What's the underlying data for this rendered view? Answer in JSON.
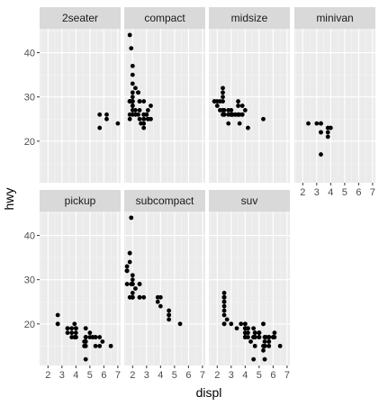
{
  "chart_data": {
    "type": "scatter",
    "xlabel": "displ",
    "ylabel": "hwy",
    "xlim": [
      1.4,
      7.2
    ],
    "ylim": [
      10.6,
      45.4
    ],
    "x_ticks": [
      2,
      3,
      4,
      5,
      6,
      7
    ],
    "y_ticks": [
      20,
      30,
      40
    ],
    "facet_by": "class",
    "colors": {
      "panel_background": "#ebebeb",
      "grid_major": "#ffffff",
      "strip_background": "#d9d9d9",
      "point": "#000000"
    },
    "panels": [
      {
        "name": "2seater",
        "points": [
          [
            5.7,
            26
          ],
          [
            5.7,
            23
          ],
          [
            6.2,
            26
          ],
          [
            6.2,
            25
          ],
          [
            7.0,
            24
          ]
        ]
      },
      {
        "name": "compact",
        "points": [
          [
            1.8,
            29
          ],
          [
            1.8,
            29
          ],
          [
            2.0,
            31
          ],
          [
            2.0,
            30
          ],
          [
            2.8,
            26
          ],
          [
            2.8,
            26
          ],
          [
            3.1,
            27
          ],
          [
            1.8,
            26
          ],
          [
            1.8,
            25
          ],
          [
            2.0,
            28
          ],
          [
            2.0,
            27
          ],
          [
            2.8,
            25
          ],
          [
            2.8,
            25
          ],
          [
            3.1,
            25
          ],
          [
            3.1,
            25
          ],
          [
            2.2,
            26
          ],
          [
            2.2,
            27
          ],
          [
            2.4,
            31
          ],
          [
            2.4,
            31
          ],
          [
            3.0,
            26
          ],
          [
            3.0,
            26
          ],
          [
            3.3,
            28
          ],
          [
            1.8,
            44
          ],
          [
            1.8,
            29
          ],
          [
            2.0,
            37
          ],
          [
            2.0,
            35
          ],
          [
            2.0,
            29
          ],
          [
            2.0,
            26
          ],
          [
            2.8,
            29
          ],
          [
            1.9,
            41
          ],
          [
            2.0,
            29
          ],
          [
            2.0,
            28
          ],
          [
            2.5,
            29
          ],
          [
            2.5,
            29
          ],
          [
            2.8,
            23
          ],
          [
            2.8,
            24
          ],
          [
            1.8,
            29
          ],
          [
            1.8,
            29
          ],
          [
            2.0,
            28
          ],
          [
            2.0,
            29
          ],
          [
            2.0,
            33
          ],
          [
            2.6,
            24
          ],
          [
            3.3,
            25
          ],
          [
            2.5,
            27
          ],
          [
            2.5,
            25
          ],
          [
            2.4,
            26
          ],
          [
            2.2,
            32
          ]
        ]
      },
      {
        "name": "midsize",
        "points": [
          [
            2.8,
            26
          ],
          [
            3.1,
            26
          ],
          [
            4.2,
            23
          ],
          [
            2.4,
            27
          ],
          [
            2.4,
            30
          ],
          [
            3.1,
            26
          ],
          [
            3.5,
            29
          ],
          [
            3.6,
            26
          ],
          [
            2.4,
            29
          ],
          [
            2.4,
            27
          ],
          [
            2.5,
            27
          ],
          [
            3.3,
            26
          ],
          [
            3.3,
            26
          ],
          [
            3.8,
            28
          ],
          [
            3.8,
            26
          ],
          [
            3.8,
            26
          ],
          [
            5.3,
            25
          ],
          [
            2.5,
            26
          ],
          [
            2.5,
            26
          ],
          [
            3.5,
            28
          ],
          [
            3.5,
            26
          ],
          [
            3.0,
            26
          ],
          [
            3.0,
            26
          ],
          [
            2.2,
            27
          ],
          [
            2.2,
            29
          ],
          [
            2.4,
            31
          ],
          [
            2.4,
            32
          ],
          [
            3.0,
            27
          ],
          [
            3.0,
            26
          ],
          [
            3.5,
            26
          ],
          [
            1.8,
            29
          ],
          [
            1.8,
            29
          ],
          [
            2.0,
            29
          ],
          [
            2.0,
            28
          ],
          [
            2.8,
            27
          ],
          [
            2.8,
            24
          ],
          [
            3.6,
            24
          ],
          [
            2.4,
            26
          ],
          [
            3.5,
            26
          ],
          [
            4.0,
            27
          ]
        ]
      },
      {
        "name": "minivan",
        "points": [
          [
            2.4,
            24
          ],
          [
            3.0,
            24
          ],
          [
            3.3,
            22
          ],
          [
            3.3,
            22
          ],
          [
            3.3,
            24
          ],
          [
            3.3,
            24
          ],
          [
            3.3,
            17
          ],
          [
            3.8,
            22
          ],
          [
            3.8,
            21
          ],
          [
            3.8,
            23
          ],
          [
            4.0,
            23
          ]
        ]
      },
      {
        "name": "pickup",
        "points": [
          [
            2.7,
            20
          ],
          [
            2.7,
            22
          ],
          [
            3.4,
            19
          ],
          [
            3.7,
            18
          ],
          [
            3.7,
            17
          ],
          [
            3.9,
            17
          ],
          [
            3.9,
            20
          ],
          [
            4.7,
            16
          ],
          [
            4.7,
            17
          ],
          [
            4.7,
            19
          ],
          [
            4.7,
            17
          ],
          [
            4.7,
            19
          ],
          [
            4.7,
            15
          ],
          [
            5.2,
            17
          ],
          [
            5.2,
            17
          ],
          [
            5.7,
            17
          ],
          [
            5.9,
            16
          ],
          [
            3.7,
            19
          ],
          [
            4.0,
            17
          ],
          [
            4.0,
            19
          ],
          [
            4.6,
            16
          ],
          [
            5.0,
            18
          ],
          [
            5.4,
            17
          ],
          [
            4.6,
            15
          ],
          [
            4.7,
            12
          ],
          [
            5.4,
            17
          ],
          [
            4.0,
            17
          ],
          [
            4.0,
            19
          ],
          [
            4.0,
            17
          ],
          [
            4.7,
            17
          ],
          [
            5.7,
            15
          ],
          [
            2.7,
            20
          ],
          [
            3.4,
            19
          ],
          [
            3.4,
            18
          ],
          [
            4.0,
            18
          ],
          [
            4.0,
            19
          ],
          [
            4.7,
            16
          ],
          [
            5.0,
            17
          ],
          [
            6.5,
            15
          ],
          [
            5.4,
            15
          ]
        ]
      },
      {
        "name": "subcompact",
        "points": [
          [
            3.8,
            26
          ],
          [
            3.8,
            25
          ],
          [
            4.0,
            26
          ],
          [
            4.0,
            24
          ],
          [
            4.6,
            21
          ],
          [
            4.6,
            22
          ],
          [
            4.6,
            23
          ],
          [
            4.6,
            22
          ],
          [
            5.4,
            20
          ],
          [
            1.6,
            33
          ],
          [
            1.6,
            32
          ],
          [
            1.6,
            32
          ],
          [
            1.6,
            29
          ],
          [
            1.6,
            32
          ],
          [
            1.8,
            34
          ],
          [
            1.8,
            36
          ],
          [
            1.8,
            36
          ],
          [
            2.0,
            29
          ],
          [
            2.0,
            26
          ],
          [
            2.0,
            27
          ],
          [
            2.0,
            30
          ],
          [
            2.0,
            31
          ],
          [
            2.0,
            26
          ],
          [
            2.0,
            29
          ],
          [
            1.9,
            44
          ],
          [
            1.9,
            29
          ],
          [
            2.0,
            26
          ],
          [
            2.0,
            29
          ],
          [
            2.5,
            29
          ],
          [
            2.5,
            29
          ],
          [
            2.5,
            26
          ],
          [
            2.5,
            26
          ],
          [
            1.8,
            26
          ],
          [
            2.2,
            28
          ],
          [
            2.8,
            26
          ]
        ]
      },
      {
        "name": "suv",
        "points": [
          [
            5.3,
            20
          ],
          [
            5.3,
            15
          ],
          [
            5.3,
            20
          ],
          [
            5.7,
            17
          ],
          [
            6.0,
            17
          ],
          [
            5.7,
            17
          ],
          [
            6.5,
            15
          ],
          [
            4.0,
            19
          ],
          [
            4.0,
            17
          ],
          [
            4.6,
            17
          ],
          [
            5.0,
            17
          ],
          [
            5.4,
            17
          ],
          [
            4.7,
            17
          ],
          [
            4.7,
            15
          ],
          [
            4.7,
            17
          ],
          [
            5.7,
            17
          ],
          [
            6.1,
            18
          ],
          [
            4.0,
            17
          ],
          [
            4.2,
            18
          ],
          [
            4.4,
            16
          ],
          [
            4.6,
            17
          ],
          [
            5.4,
            16
          ],
          [
            5.4,
            15
          ],
          [
            5.4,
            15
          ],
          [
            4.0,
            19
          ],
          [
            4.0,
            20
          ],
          [
            4.6,
            17
          ],
          [
            5.0,
            17
          ],
          [
            4.2,
            17
          ],
          [
            4.2,
            19
          ],
          [
            4.6,
            17
          ],
          [
            4.6,
            19
          ],
          [
            4.6,
            12
          ],
          [
            5.4,
            12
          ],
          [
            5.4,
            15
          ],
          [
            5.4,
            17
          ],
          [
            4.0,
            18
          ],
          [
            4.7,
            17
          ],
          [
            5.0,
            18
          ],
          [
            5.3,
            14
          ],
          [
            5.7,
            15
          ],
          [
            5.7,
            16
          ],
          [
            4.0,
            19
          ],
          [
            4.7,
            17
          ],
          [
            4.7,
            18
          ],
          [
            5.0,
            17
          ],
          [
            4.7,
            17
          ],
          [
            4.0,
            20
          ],
          [
            4.7,
            17
          ],
          [
            5.7,
            16
          ],
          [
            6.1,
            17
          ],
          [
            2.5,
            26
          ],
          [
            2.5,
            25
          ],
          [
            2.5,
            26
          ],
          [
            2.5,
            27
          ],
          [
            2.5,
            25
          ],
          [
            2.5,
            23
          ],
          [
            2.5,
            20
          ],
          [
            2.5,
            20
          ],
          [
            2.5,
            22
          ],
          [
            2.5,
            26
          ],
          [
            2.7,
            21
          ],
          [
            3.4,
            19
          ],
          [
            4.0,
            19
          ],
          [
            4.7,
            18
          ],
          [
            5.7,
            17
          ],
          [
            6.0,
            17
          ],
          [
            3.7,
            20
          ],
          [
            4.0,
            17
          ],
          [
            4.7,
            17
          ],
          [
            5.0,
            18
          ],
          [
            4.0,
            17
          ],
          [
            4.0,
            19
          ],
          [
            4.0,
            18
          ],
          [
            4.7,
            18
          ],
          [
            5.5,
            17
          ],
          [
            5.0,
            18
          ],
          [
            4.6,
            17
          ],
          [
            4.2,
            19
          ],
          [
            3.0,
            20
          ],
          [
            2.5,
            26
          ],
          [
            2.5,
            24
          ]
        ]
      }
    ]
  }
}
